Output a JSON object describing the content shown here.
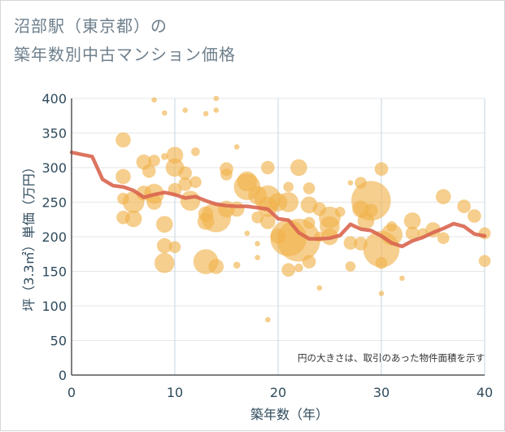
{
  "title_line1": "沼部駅（東京都）の",
  "title_line2": "築年数別中古マンション価格",
  "colors": {
    "bubble": "#f0b24a",
    "line": "#d9654f",
    "grid": "#e6e6e6",
    "vgrid": "#c5d5e2",
    "axis_text": "#2f4b5c"
  },
  "chart_data": {
    "type": "scatter",
    "xlabel": "築年数（年）",
    "ylabel": "坪（3.3㎡）単価（万円）",
    "xlim": [
      0,
      40
    ],
    "ylim": [
      0,
      400
    ],
    "xticks": [
      "0",
      "10",
      "20",
      "30",
      "40"
    ],
    "yticks": [
      "0",
      "50",
      "100",
      "150",
      "200",
      "250",
      "300",
      "350",
      "400"
    ],
    "note": "円の大きさは、取引のあった物件面積を示す",
    "line": {
      "x": [
        0,
        1,
        2,
        3,
        4,
        5,
        6,
        7,
        8,
        9,
        10,
        11,
        12,
        13,
        14,
        15,
        16,
        17,
        18,
        19,
        20,
        21,
        22,
        23,
        24,
        25,
        26,
        27,
        28,
        29,
        30,
        31,
        32,
        33,
        34,
        35,
        36,
        37,
        38,
        39,
        40
      ],
      "y": [
        322,
        319,
        316,
        283,
        274,
        272,
        267,
        257,
        261,
        264,
        261,
        256,
        258,
        252,
        247,
        245,
        244,
        244,
        242,
        240,
        226,
        224,
        206,
        197,
        197,
        198,
        202,
        218,
        211,
        209,
        201,
        191,
        186,
        194,
        199,
        206,
        212,
        219,
        215,
        204,
        201
      ]
    },
    "bubbles": [
      {
        "x": 5.0,
        "y": 340,
        "s": 9
      },
      {
        "x": 5.0,
        "y": 287,
        "s": 9
      },
      {
        "x": 5.0,
        "y": 255,
        "s": 7
      },
      {
        "x": 5.0,
        "y": 228,
        "s": 8
      },
      {
        "x": 6.0,
        "y": 250,
        "s": 13
      },
      {
        "x": 6.0,
        "y": 226,
        "s": 10
      },
      {
        "x": 7.0,
        "y": 308,
        "s": 9
      },
      {
        "x": 7.0,
        "y": 263,
        "s": 9
      },
      {
        "x": 7.5,
        "y": 295,
        "s": 8
      },
      {
        "x": 8.0,
        "y": 310,
        "s": 7
      },
      {
        "x": 8.0,
        "y": 262,
        "s": 12
      },
      {
        "x": 8.0,
        "y": 250,
        "s": 9
      },
      {
        "x": 8.0,
        "y": 398,
        "s": 3
      },
      {
        "x": 9.0,
        "y": 379,
        "s": 3
      },
      {
        "x": 9.0,
        "y": 316,
        "s": 4
      },
      {
        "x": 9.0,
        "y": 218,
        "s": 10
      },
      {
        "x": 9.0,
        "y": 187,
        "s": 9
      },
      {
        "x": 9.0,
        "y": 162,
        "s": 12
      },
      {
        "x": 10.0,
        "y": 318,
        "s": 10
      },
      {
        "x": 10.0,
        "y": 300,
        "s": 11
      },
      {
        "x": 10.0,
        "y": 268,
        "s": 8
      },
      {
        "x": 10.0,
        "y": 185,
        "s": 7
      },
      {
        "x": 11.0,
        "y": 383,
        "s": 3
      },
      {
        "x": 11.0,
        "y": 292,
        "s": 8
      },
      {
        "x": 11.0,
        "y": 276,
        "s": 8
      },
      {
        "x": 11.5,
        "y": 252,
        "s": 12
      },
      {
        "x": 12.0,
        "y": 323,
        "s": 5
      },
      {
        "x": 12.0,
        "y": 279,
        "s": 7
      },
      {
        "x": 13.0,
        "y": 378,
        "s": 3
      },
      {
        "x": 13.0,
        "y": 233,
        "s": 9
      },
      {
        "x": 13.0,
        "y": 222,
        "s": 10
      },
      {
        "x": 13.0,
        "y": 164,
        "s": 15
      },
      {
        "x": 14.0,
        "y": 400,
        "s": 3
      },
      {
        "x": 14.0,
        "y": 383,
        "s": 3
      },
      {
        "x": 14.0,
        "y": 228,
        "s": 18
      },
      {
        "x": 14.0,
        "y": 157,
        "s": 9
      },
      {
        "x": 15.0,
        "y": 298,
        "s": 8
      },
      {
        "x": 15.0,
        "y": 290,
        "s": 7
      },
      {
        "x": 15.0,
        "y": 240,
        "s": 10
      },
      {
        "x": 16.0,
        "y": 330,
        "s": 3
      },
      {
        "x": 16.0,
        "y": 240,
        "s": 9
      },
      {
        "x": 16.0,
        "y": 159,
        "s": 4
      },
      {
        "x": 17.0,
        "y": 280,
        "s": 12
      },
      {
        "x": 17.0,
        "y": 272,
        "s": 16
      },
      {
        "x": 17.0,
        "y": 205,
        "s": 3
      },
      {
        "x": 18.0,
        "y": 260,
        "s": 11
      },
      {
        "x": 18.0,
        "y": 228,
        "s": 7
      },
      {
        "x": 18.0,
        "y": 190,
        "s": 3
      },
      {
        "x": 18.0,
        "y": 170,
        "s": 3
      },
      {
        "x": 19.0,
        "y": 300,
        "s": 8
      },
      {
        "x": 19.0,
        "y": 255,
        "s": 16
      },
      {
        "x": 19.0,
        "y": 243,
        "s": 12
      },
      {
        "x": 19.0,
        "y": 222,
        "s": 9
      },
      {
        "x": 19.0,
        "y": 80,
        "s": 3
      },
      {
        "x": 20.0,
        "y": 250,
        "s": 11
      },
      {
        "x": 20.0,
        "y": 201,
        "s": 9
      },
      {
        "x": 21.0,
        "y": 272,
        "s": 6
      },
      {
        "x": 21.0,
        "y": 250,
        "s": 12
      },
      {
        "x": 21.0,
        "y": 152,
        "s": 8
      },
      {
        "x": 21.0,
        "y": 198,
        "s": 22
      },
      {
        "x": 22.0,
        "y": 300,
        "s": 10
      },
      {
        "x": 22.0,
        "y": 195,
        "s": 26
      },
      {
        "x": 22.0,
        "y": 155,
        "s": 5
      },
      {
        "x": 23.0,
        "y": 270,
        "s": 7
      },
      {
        "x": 23.0,
        "y": 246,
        "s": 10
      },
      {
        "x": 23.0,
        "y": 220,
        "s": 7
      },
      {
        "x": 23.0,
        "y": 164,
        "s": 8
      },
      {
        "x": 24.0,
        "y": 240,
        "s": 8
      },
      {
        "x": 24.0,
        "y": 200,
        "s": 6
      },
      {
        "x": 24.0,
        "y": 126,
        "s": 3
      },
      {
        "x": 25.0,
        "y": 228,
        "s": 13
      },
      {
        "x": 25.0,
        "y": 215,
        "s": 12
      },
      {
        "x": 25.0,
        "y": 200,
        "s": 10
      },
      {
        "x": 26.0,
        "y": 236,
        "s": 6
      },
      {
        "x": 27.0,
        "y": 278,
        "s": 3
      },
      {
        "x": 27.0,
        "y": 191,
        "s": 8
      },
      {
        "x": 27.0,
        "y": 157,
        "s": 6
      },
      {
        "x": 28.0,
        "y": 278,
        "s": 7
      },
      {
        "x": 28.0,
        "y": 240,
        "s": 10
      },
      {
        "x": 28.0,
        "y": 190,
        "s": 8
      },
      {
        "x": 28.5,
        "y": 223,
        "s": 10
      },
      {
        "x": 29.0,
        "y": 252,
        "s": 24
      },
      {
        "x": 29.0,
        "y": 238,
        "s": 8
      },
      {
        "x": 30.0,
        "y": 298,
        "s": 8
      },
      {
        "x": 30.0,
        "y": 182,
        "s": 22
      },
      {
        "x": 30.0,
        "y": 162,
        "s": 7
      },
      {
        "x": 30.0,
        "y": 118,
        "s": 3
      },
      {
        "x": 31.0,
        "y": 215,
        "s": 6
      },
      {
        "x": 31.0,
        "y": 203,
        "s": 13
      },
      {
        "x": 32.0,
        "y": 140,
        "s": 3
      },
      {
        "x": 33.0,
        "y": 223,
        "s": 10
      },
      {
        "x": 33.0,
        "y": 205,
        "s": 8
      },
      {
        "x": 34.0,
        "y": 205,
        "s": 6
      },
      {
        "x": 35.0,
        "y": 210,
        "s": 9
      },
      {
        "x": 36.0,
        "y": 258,
        "s": 9
      },
      {
        "x": 36.0,
        "y": 198,
        "s": 7
      },
      {
        "x": 38.0,
        "y": 244,
        "s": 8
      },
      {
        "x": 39.0,
        "y": 230,
        "s": 8
      },
      {
        "x": 40.0,
        "y": 205,
        "s": 7
      },
      {
        "x": 40.0,
        "y": 165,
        "s": 7
      }
    ]
  }
}
